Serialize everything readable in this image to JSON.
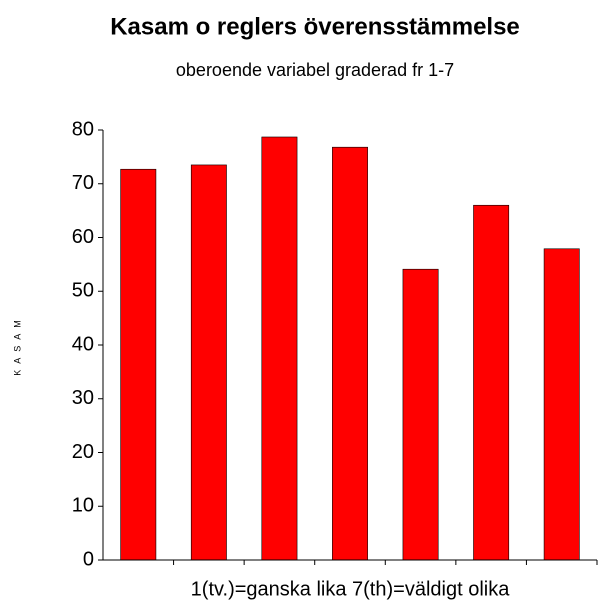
{
  "chart_data": {
    "type": "bar",
    "title": "Kasam o reglers överensstämmelse",
    "subtitle": "oberoende variabel graderad fr 1-7",
    "x_label": "1(tv.)=ganska lika 7(th)=väldigt olika",
    "y_label": "KASAM",
    "categories": [
      null,
      null,
      null,
      null,
      null,
      null,
      null
    ],
    "values": [
      72.7,
      73.5,
      78.7,
      76.8,
      54.1,
      66,
      57.9
    ],
    "color": "#ff0000",
    "ylim": [
      0,
      80
    ],
    "yticks": [
      0,
      10,
      20,
      30,
      40,
      50,
      60,
      70,
      80
    ],
    "grid": false
  }
}
